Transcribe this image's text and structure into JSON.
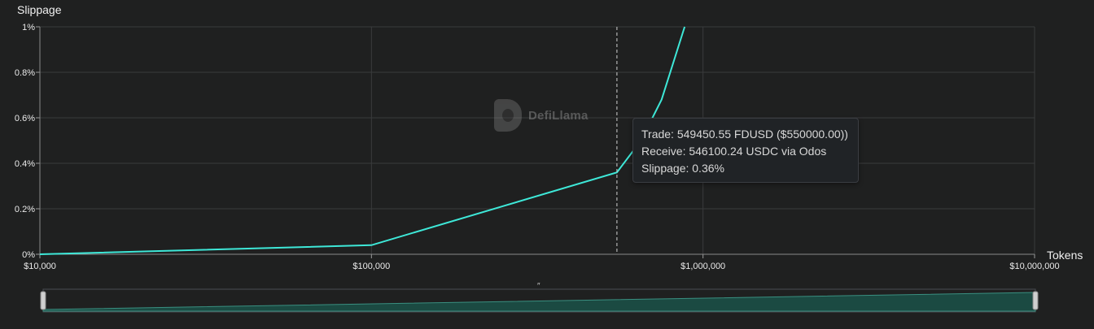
{
  "chart_data": {
    "type": "line",
    "ylabel": "Slippage",
    "xlabel": "Tokens",
    "x_scale": "log",
    "xlim": [
      10000,
      10000000
    ],
    "ylim": [
      0,
      1
    ],
    "x_ticks": [
      {
        "value": 10000,
        "label": "$10,000"
      },
      {
        "value": 100000,
        "label": "$100,000"
      },
      {
        "value": 1000000,
        "label": "$1,000,000"
      },
      {
        "value": 10000000,
        "label": "$10,000,000"
      }
    ],
    "y_ticks": [
      {
        "value": 0,
        "label": "0%"
      },
      {
        "value": 0.2,
        "label": "0.2%"
      },
      {
        "value": 0.4,
        "label": "0.4%"
      },
      {
        "value": 0.6,
        "label": "0.6%"
      },
      {
        "value": 0.8,
        "label": "0.8%"
      },
      {
        "value": 1,
        "label": "1%"
      }
    ],
    "grid": true,
    "line_color": "#3ee8d8",
    "series": [
      {
        "points": [
          {
            "x": 10000,
            "y": 0.0
          },
          {
            "x": 100000,
            "y": 0.04
          },
          {
            "x": 550000,
            "y": 0.36
          },
          {
            "x": 650000,
            "y": 0.5
          },
          {
            "x": 750000,
            "y": 0.68
          },
          {
            "x": 880000,
            "y": 1.0
          }
        ]
      }
    ],
    "hover_x": 550000
  },
  "tooltip": {
    "trade": "Trade: 549450.55 FDUSD ($550000.00))",
    "receive": "Receive: 546100.24 USDC via Odos",
    "slippage": "Slippage: 0.36%"
  },
  "watermark": {
    "text": "DefiLlama",
    "icon": "llama-logo-icon"
  },
  "brush": {
    "handle_label": "″"
  }
}
